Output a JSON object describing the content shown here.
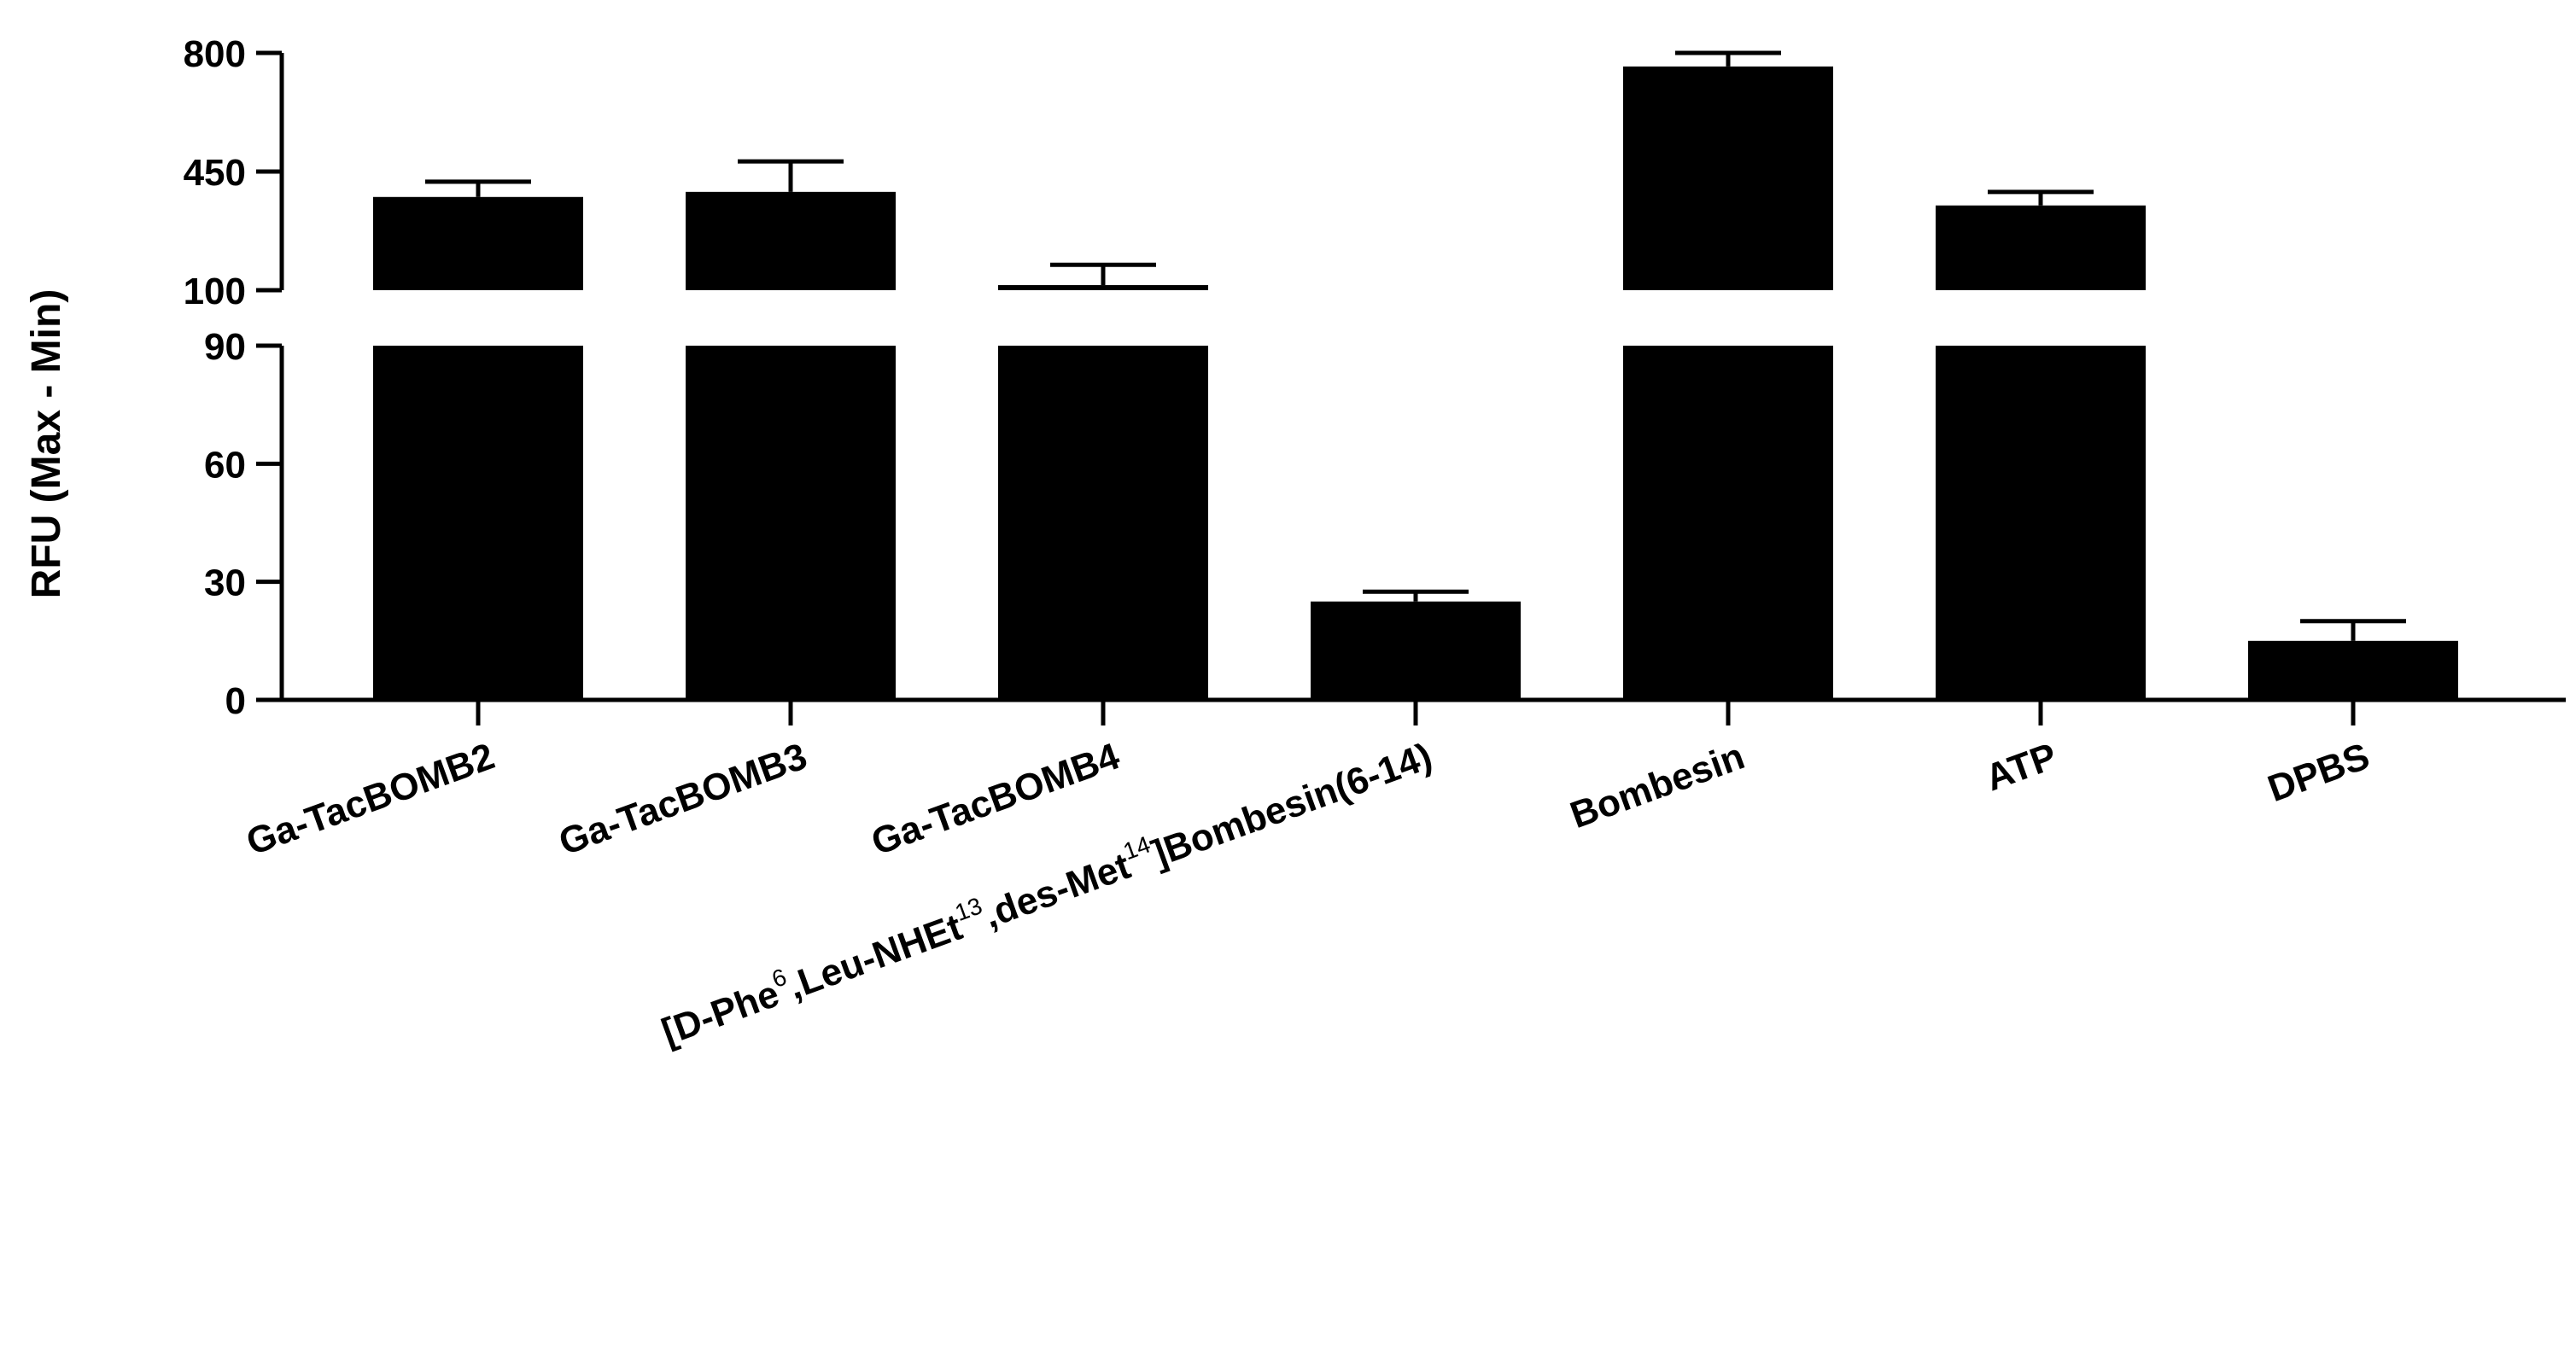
{
  "chart_data": {
    "type": "bar",
    "ylabel": "RFU (Max - Min)",
    "categories": [
      [
        "Ga-TacBOMB2"
      ],
      [
        "Ga-TacBOMB3"
      ],
      [
        "Ga-TacBOMB4"
      ],
      [
        "[D-Phe",
        {
          "sup": "6"
        },
        ",Leu-NHEt",
        {
          "sup": "13"
        },
        ",des-Met",
        {
          "sup": "14"
        },
        "]Bombesin(6-14)"
      ],
      [
        "Bombesin"
      ],
      [
        "ATP"
      ],
      [
        "DPBS"
      ]
    ],
    "values": [
      375,
      390,
      115,
      25,
      760,
      350,
      15
    ],
    "errors": [
      45,
      90,
      60,
      2.5,
      40,
      40,
      5
    ],
    "y_axis_break": {
      "lower": {
        "range": [
          0,
          90
        ],
        "ticks": [
          0,
          30,
          60,
          90
        ]
      },
      "upper": {
        "range": [
          100,
          800
        ],
        "ticks": [
          100,
          450,
          800
        ]
      }
    },
    "colors": {
      "bar": "#000000",
      "axis": "#000000"
    }
  }
}
